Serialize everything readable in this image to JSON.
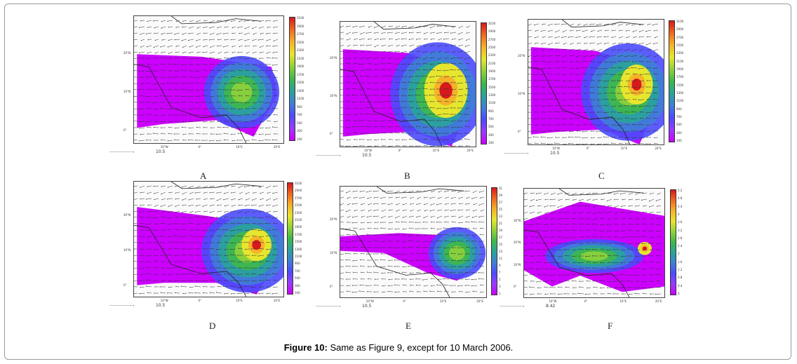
{
  "caption": {
    "label": "Figure 10:",
    "text": " Same as Figure 9, except for 10 March 2006."
  },
  "colors": {
    "scale": [
      "#cc00ff",
      "#9a3cff",
      "#4b4bff",
      "#3f7fd6",
      "#2aa39a",
      "#3fb84a",
      "#8fd13a",
      "#e6e62e",
      "#f5b32a",
      "#f06a1f",
      "#d7191c"
    ],
    "wind_arrow": "#333333",
    "coast": "#222222"
  },
  "panels": [
    {
      "id": "A",
      "label": "A",
      "ref_vector": "10.5",
      "lat_labels": [
        "20°N",
        "10°N",
        "0°"
      ],
      "lon_labels": [
        "10°W",
        "0°",
        "10°E",
        "20°E"
      ],
      "colorbar_ticks": [
        "3100",
        "2900",
        "2700",
        "2500",
        "2300",
        "2100",
        "1900",
        "1700",
        "1500",
        "1300",
        "1100",
        "900",
        "700",
        "500",
        "300",
        "100"
      ]
    },
    {
      "id": "B",
      "label": "B",
      "ref_vector": "10.5",
      "lat_labels": [
        "20°N",
        "10°N",
        "0°"
      ],
      "lon_labels": [
        "10°W",
        "0°",
        "10°E",
        "20°E"
      ],
      "colorbar_ticks": [
        "3100",
        "2900",
        "2700",
        "2500",
        "2300",
        "2100",
        "1900",
        "1700",
        "1500",
        "1300",
        "1100",
        "900",
        "700",
        "500",
        "300",
        "100"
      ]
    },
    {
      "id": "C",
      "label": "C",
      "ref_vector": "10.5",
      "lat_labels": [
        "20°N",
        "10°N",
        "0°"
      ],
      "lon_labels": [
        "10°W",
        "0°",
        "10°E",
        "20°E"
      ],
      "colorbar_ticks": [
        "3100",
        "2900",
        "2700",
        "2500",
        "2300",
        "2100",
        "1900",
        "1700",
        "1500",
        "1300",
        "1100",
        "900",
        "700",
        "500",
        "300",
        "100"
      ]
    },
    {
      "id": "D",
      "label": "D",
      "ref_vector": "10.5",
      "lat_labels": [
        "20°N",
        "10°N",
        "0°"
      ],
      "lon_labels": [
        "10°W",
        "0°",
        "10°E",
        "20°E"
      ],
      "colorbar_ticks": [
        "3100",
        "2900",
        "2700",
        "2500",
        "2300",
        "2100",
        "1900",
        "1700",
        "1500",
        "1300",
        "1100",
        "900",
        "700",
        "500",
        "300",
        "100"
      ]
    },
    {
      "id": "E",
      "label": "E",
      "ref_vector": "10.5",
      "lat_labels": [
        "20°N",
        "10°N",
        "0°"
      ],
      "lon_labels": [
        "10°W",
        "0°",
        "10°E",
        "20°E"
      ],
      "colorbar_ticks": [
        "31",
        "29",
        "27",
        "25",
        "23",
        "21",
        "19",
        "17",
        "15",
        "13",
        "11",
        "9",
        "7",
        "5",
        "3",
        "1"
      ]
    },
    {
      "id": "F",
      "label": "F",
      "ref_vector": "8.42",
      "lat_labels": [
        "30°N",
        "20°N",
        "10°N",
        "0°"
      ],
      "lon_labels": [
        "10°W",
        "0°",
        "10°E",
        "20°E"
      ],
      "colorbar_ticks": [
        "5.2",
        "4.8",
        "4.4",
        "4",
        "3.6",
        "3.2",
        "2.8",
        "2.4",
        "2",
        "1.6",
        "1.2",
        "0.8",
        "0.4",
        "0"
      ]
    }
  ]
}
